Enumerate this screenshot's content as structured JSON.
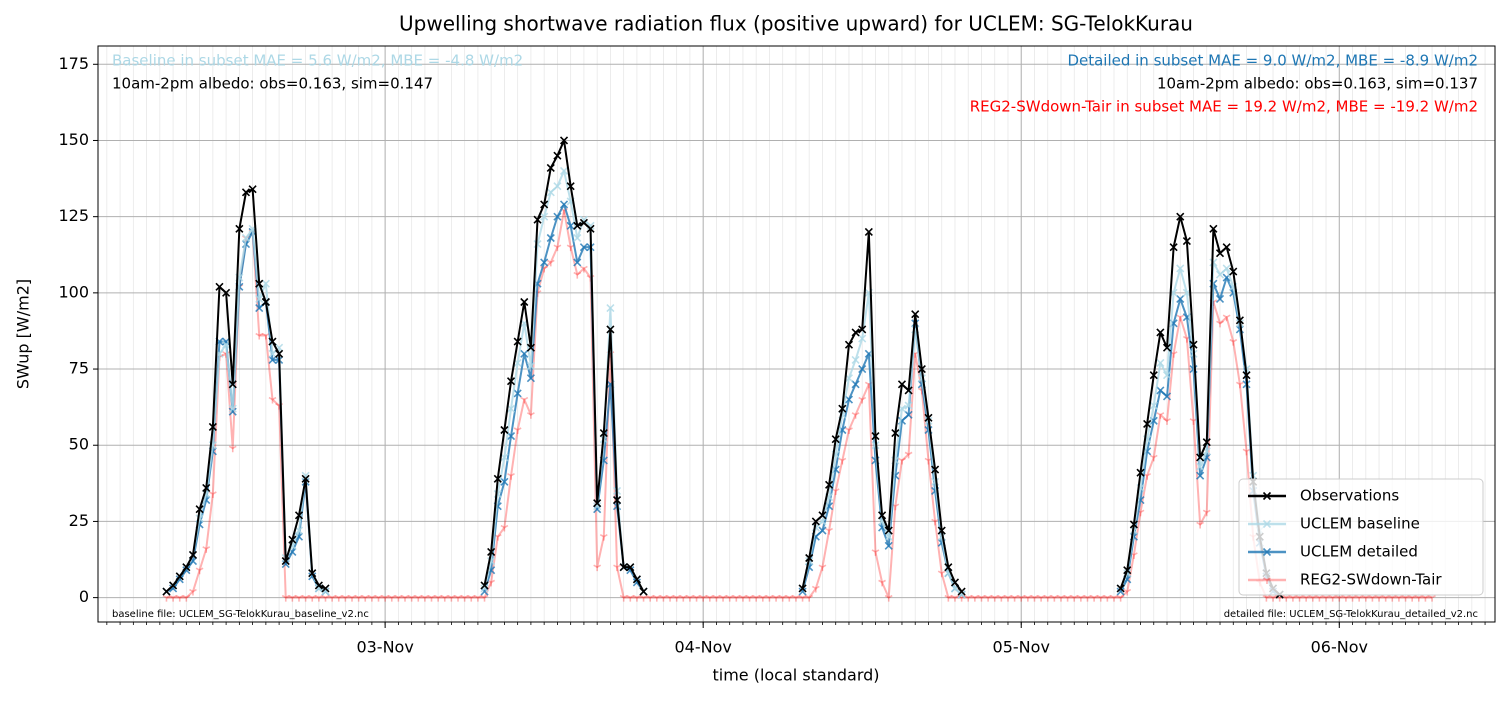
{
  "chart_data": {
    "type": "line",
    "title": "Upwelling shortwave radiation flux (positive upward) for UCLEM: SG-TelokKurau",
    "xlabel": "time (local standard)",
    "ylabel": "SWup [W/m2]",
    "xlim": [
      "02-Nov 02:20",
      "06-Nov 11:45"
    ],
    "xticks": [
      "03-Nov",
      "04-Nov",
      "05-Nov",
      "06-Nov"
    ],
    "ylim": [
      -8,
      181
    ],
    "yticks": [
      0,
      25,
      50,
      75,
      100,
      125,
      150,
      175
    ],
    "grid": true,
    "minor_grid": true,
    "legend": "lower-right",
    "annotations": [
      {
        "text": "Baseline in subset MAE = 5.6 W/m2, MBE = -4.8 W/m2",
        "color": "#add8e6",
        "corner": "top-left"
      },
      {
        "text": "10am-2pm albedo: obs=0.163, sim=0.147",
        "color": "#000000",
        "corner": "top-left"
      },
      {
        "text": "Detailed in subset MAE = 9.0 W/m2, MBE = -8.9 W/m2",
        "color": "#1f77b4",
        "corner": "top-right"
      },
      {
        "text": "10am-2pm albedo: obs=0.163, sim=0.137",
        "color": "#000000",
        "corner": "top-right"
      },
      {
        "text": "REG2-SWdown-Tair in subset MAE = 19.2 W/m2, MBE = -19.2 W/m2",
        "color": "#ff0000",
        "corner": "top-right"
      },
      {
        "text": "baseline file: UCLEM_SG-TelokKurau_baseline_v2.nc",
        "color": "#000000",
        "corner": "bottom-left"
      },
      {
        "text": "detailed file: UCLEM_SG-TelokKurau_detailed_v2.nc",
        "color": "#000000",
        "corner": "bottom-right"
      }
    ],
    "x": [
      "02-Nov 07:30",
      "02-Nov 08:00",
      "02-Nov 08:30",
      "02-Nov 09:00",
      "02-Nov 09:30",
      "02-Nov 10:00",
      "02-Nov 10:30",
      "02-Nov 11:00",
      "02-Nov 11:30",
      "02-Nov 12:00",
      "02-Nov 12:30",
      "02-Nov 13:00",
      "02-Nov 13:30",
      "02-Nov 14:00",
      "02-Nov 14:30",
      "02-Nov 15:00",
      "02-Nov 15:30",
      "02-Nov 16:00",
      "02-Nov 16:30",
      "02-Nov 17:00",
      "02-Nov 17:30",
      "02-Nov 18:00",
      "02-Nov 18:30",
      "02-Nov 19:00",
      "02-Nov 19:30",
      "02-Nov 20:00",
      "02-Nov 20:30",
      "02-Nov 21:00",
      "02-Nov 21:30",
      "02-Nov 22:00",
      "02-Nov 22:30",
      "02-Nov 23:00",
      "02-Nov 23:30",
      "03-Nov 00:00",
      "03-Nov 00:30",
      "03-Nov 01:00",
      "03-Nov 01:30",
      "03-Nov 02:00",
      "03-Nov 02:30",
      "03-Nov 03:00",
      "03-Nov 03:30",
      "03-Nov 04:00",
      "03-Nov 04:30",
      "03-Nov 05:00",
      "03-Nov 05:30",
      "03-Nov 06:00",
      "03-Nov 06:30",
      "03-Nov 07:00",
      "03-Nov 07:30",
      "03-Nov 08:00",
      "03-Nov 08:30",
      "03-Nov 09:00",
      "03-Nov 09:30",
      "03-Nov 10:00",
      "03-Nov 10:30",
      "03-Nov 11:00",
      "03-Nov 11:30",
      "03-Nov 12:00",
      "03-Nov 12:30",
      "03-Nov 13:00",
      "03-Nov 13:30",
      "03-Nov 14:00",
      "03-Nov 14:30",
      "03-Nov 15:00",
      "03-Nov 15:30",
      "03-Nov 16:00",
      "03-Nov 16:30",
      "03-Nov 17:00",
      "03-Nov 17:30",
      "03-Nov 18:00",
      "03-Nov 18:30",
      "03-Nov 19:00",
      "03-Nov 19:30",
      "03-Nov 20:00",
      "03-Nov 20:30",
      "03-Nov 21:00",
      "03-Nov 21:30",
      "03-Nov 22:00",
      "03-Nov 22:30",
      "03-Nov 23:00",
      "03-Nov 23:30",
      "04-Nov 00:00",
      "04-Nov 00:30",
      "04-Nov 01:00",
      "04-Nov 01:30",
      "04-Nov 02:00",
      "04-Nov 02:30",
      "04-Nov 03:00",
      "04-Nov 03:30",
      "04-Nov 04:00",
      "04-Nov 04:30",
      "04-Nov 05:00",
      "04-Nov 05:30",
      "04-Nov 06:00",
      "04-Nov 06:30",
      "04-Nov 07:00",
      "04-Nov 07:30",
      "04-Nov 08:00",
      "04-Nov 08:30",
      "04-Nov 09:00",
      "04-Nov 09:30",
      "04-Nov 10:00",
      "04-Nov 10:30",
      "04-Nov 11:00",
      "04-Nov 11:30",
      "04-Nov 12:00",
      "04-Nov 12:30",
      "04-Nov 13:00",
      "04-Nov 13:30",
      "04-Nov 14:00",
      "04-Nov 14:30",
      "04-Nov 15:00",
      "04-Nov 15:30",
      "04-Nov 16:00",
      "04-Nov 16:30",
      "04-Nov 17:00",
      "04-Nov 17:30",
      "04-Nov 18:00",
      "04-Nov 18:30",
      "04-Nov 19:00",
      "04-Nov 19:30",
      "04-Nov 20:00",
      "04-Nov 20:30",
      "04-Nov 21:00",
      "04-Nov 21:30",
      "04-Nov 22:00",
      "04-Nov 22:30",
      "04-Nov 23:00",
      "04-Nov 23:30",
      "05-Nov 00:00",
      "05-Nov 00:30",
      "05-Nov 01:00",
      "05-Nov 01:30",
      "05-Nov 02:00",
      "05-Nov 02:30",
      "05-Nov 03:00",
      "05-Nov 03:30",
      "05-Nov 04:00",
      "05-Nov 04:30",
      "05-Nov 05:00",
      "05-Nov 05:30",
      "05-Nov 06:00",
      "05-Nov 06:30",
      "05-Nov 07:00",
      "05-Nov 07:30",
      "05-Nov 08:00",
      "05-Nov 08:30",
      "05-Nov 09:00",
      "05-Nov 09:30",
      "05-Nov 10:00",
      "05-Nov 10:30",
      "05-Nov 11:00",
      "05-Nov 11:30",
      "05-Nov 12:00",
      "05-Nov 12:30",
      "05-Nov 13:00",
      "05-Nov 13:30",
      "05-Nov 14:00",
      "05-Nov 14:30",
      "05-Nov 15:00",
      "05-Nov 15:30",
      "05-Nov 16:00",
      "05-Nov 16:30",
      "05-Nov 17:00",
      "05-Nov 17:30",
      "05-Nov 18:00",
      "05-Nov 18:30",
      "05-Nov 19:00",
      "05-Nov 19:30",
      "05-Nov 20:00",
      "05-Nov 20:30",
      "05-Nov 21:00",
      "05-Nov 21:30",
      "05-Nov 22:00",
      "05-Nov 22:30",
      "05-Nov 23:00",
      "05-Nov 23:30",
      "06-Nov 00:00",
      "06-Nov 00:30",
      "06-Nov 01:00",
      "06-Nov 01:30",
      "06-Nov 02:00",
      "06-Nov 02:30",
      "06-Nov 03:00",
      "06-Nov 03:30",
      "06-Nov 04:00",
      "06-Nov 04:30",
      "06-Nov 05:00",
      "06-Nov 05:30",
      "06-Nov 06:00",
      "06-Nov 06:30",
      "06-Nov 07:00"
    ],
    "series": [
      {
        "name": "Observations",
        "color": "#000000",
        "alpha": 1,
        "marker": "x",
        "values": [
          2,
          4,
          7,
          10,
          14,
          29,
          36,
          56,
          102,
          100,
          70,
          121,
          133,
          134,
          103,
          97,
          84,
          80,
          12,
          19,
          27,
          39,
          8,
          4,
          3,
          null,
          null,
          null,
          null,
          null,
          null,
          null,
          null,
          null,
          null,
          null,
          null,
          null,
          null,
          null,
          null,
          null,
          null,
          null,
          null,
          null,
          null,
          null,
          4,
          15,
          39,
          55,
          71,
          84,
          97,
          82,
          124,
          129,
          141,
          145,
          150,
          135,
          122,
          123,
          121,
          31,
          54,
          88,
          32,
          10,
          10,
          6,
          2,
          null,
          null,
          null,
          null,
          null,
          null,
          null,
          null,
          null,
          null,
          null,
          null,
          null,
          null,
          null,
          null,
          null,
          null,
          null,
          null,
          null,
          null,
          null,
          3,
          13,
          25,
          27,
          37,
          52,
          62,
          83,
          87,
          88,
          120,
          53,
          27,
          22,
          54,
          70,
          68,
          93,
          75,
          59,
          42,
          22,
          10,
          5,
          2,
          null,
          null,
          null,
          null,
          null,
          null,
          null,
          null,
          null,
          null,
          null,
          null,
          null,
          null,
          null,
          null,
          null,
          null,
          null,
          null,
          null,
          null,
          null,
          3,
          9,
          24,
          41,
          57,
          73,
          87,
          82,
          115,
          125,
          117,
          83,
          46,
          51,
          121,
          113,
          115,
          107,
          91,
          73,
          38,
          20,
          8,
          3,
          1,
          null,
          null,
          null,
          null,
          null,
          null,
          null,
          null,
          null,
          null,
          null,
          null,
          null,
          null,
          null,
          null,
          null,
          null,
          null,
          null,
          null,
          null,
          null
        ]
      },
      {
        "name": "UCLEM baseline",
        "color": "#add8e6",
        "alpha": 0.8,
        "marker": "x",
        "values": [
          2,
          4,
          7,
          10,
          14,
          26,
          34,
          50,
          80,
          83,
          62,
          105,
          118,
          121,
          98,
          103,
          80,
          82,
          13,
          17,
          22,
          40,
          8,
          3,
          2,
          null,
          null,
          null,
          null,
          null,
          null,
          null,
          null,
          null,
          null,
          null,
          null,
          null,
          null,
          null,
          null,
          null,
          null,
          null,
          null,
          null,
          null,
          null,
          3,
          12,
          34,
          46,
          62,
          77,
          90,
          76,
          116,
          125,
          133,
          135,
          140,
          130,
          118,
          124,
          122,
          30,
          52,
          95,
          35,
          10,
          10,
          6,
          2,
          null,
          null,
          null,
          null,
          null,
          null,
          null,
          null,
          null,
          null,
          null,
          null,
          null,
          null,
          null,
          null,
          null,
          null,
          null,
          null,
          null,
          null,
          null,
          3,
          12,
          23,
          25,
          33,
          47,
          60,
          72,
          78,
          85,
          100,
          50,
          25,
          20,
          45,
          62,
          63,
          88,
          72,
          58,
          38,
          20,
          8,
          3,
          1,
          null,
          null,
          null,
          null,
          null,
          null,
          null,
          null,
          null,
          null,
          null,
          null,
          null,
          null,
          null,
          null,
          null,
          null,
          null,
          null,
          null,
          null,
          null,
          3,
          8,
          22,
          36,
          52,
          63,
          77,
          73,
          100,
          108,
          100,
          80,
          43,
          48,
          110,
          106,
          108,
          102,
          90,
          75,
          40,
          22,
          8,
          3,
          1,
          null,
          null,
          null,
          null,
          null,
          null,
          null,
          null,
          null,
          null,
          null,
          null,
          null,
          null,
          null,
          null,
          null,
          null,
          null,
          null,
          null,
          null,
          null
        ]
      },
      {
        "name": "UCLEM detailed",
        "color": "#1f77b4",
        "alpha": 0.8,
        "marker": "x",
        "values": [
          2,
          3,
          6,
          9,
          12,
          24,
          32,
          48,
          84,
          84,
          61,
          102,
          116,
          120,
          95,
          97,
          78,
          78,
          11,
          15,
          20,
          38,
          7,
          3,
          2,
          null,
          null,
          null,
          null,
          null,
          null,
          null,
          null,
          null,
          null,
          null,
          null,
          null,
          null,
          null,
          null,
          null,
          null,
          null,
          null,
          null,
          null,
          null,
          2,
          9,
          30,
          38,
          53,
          67,
          80,
          72,
          103,
          110,
          118,
          125,
          129,
          122,
          110,
          115,
          115,
          29,
          45,
          70,
          30,
          10,
          9,
          5,
          2,
          null,
          null,
          null,
          null,
          null,
          null,
          null,
          null,
          null,
          null,
          null,
          null,
          null,
          null,
          null,
          null,
          null,
          null,
          null,
          null,
          null,
          null,
          null,
          2,
          10,
          20,
          22,
          30,
          42,
          55,
          65,
          70,
          75,
          80,
          45,
          23,
          17,
          40,
          58,
          60,
          90,
          70,
          55,
          35,
          18,
          8,
          3,
          1,
          null,
          null,
          null,
          null,
          null,
          null,
          null,
          null,
          null,
          null,
          null,
          null,
          null,
          null,
          null,
          null,
          null,
          null,
          null,
          null,
          null,
          null,
          null,
          2,
          6,
          20,
          32,
          48,
          58,
          68,
          66,
          90,
          98,
          92,
          75,
          40,
          46,
          103,
          98,
          105,
          100,
          88,
          70,
          35,
          18,
          7,
          2,
          1,
          null,
          null,
          null,
          null,
          null,
          null,
          null,
          null,
          null,
          null,
          null,
          null,
          null,
          null,
          null,
          null,
          null,
          null,
          null,
          null,
          null,
          null,
          null
        ]
      },
      {
        "name": "REG2-SWdown-Tair",
        "color": "#ff0000",
        "alpha": 0.3,
        "marker": "tri",
        "values": [
          0,
          0,
          0,
          0,
          2,
          9,
          16,
          34,
          79,
          80,
          49,
          102,
          118,
          120,
          86,
          86,
          65,
          63,
          0,
          0,
          0,
          0,
          0,
          0,
          0,
          0,
          0,
          0,
          0,
          0,
          0,
          0,
          0,
          0,
          0,
          0,
          0,
          0,
          0,
          0,
          0,
          0,
          0,
          0,
          0,
          0,
          0,
          0,
          0,
          5,
          20,
          23,
          40,
          55,
          65,
          60,
          100,
          108,
          110,
          115,
          127,
          115,
          106,
          108,
          105,
          10,
          20,
          80,
          10,
          0,
          0,
          0,
          0,
          0,
          0,
          0,
          0,
          0,
          0,
          0,
          0,
          0,
          0,
          0,
          0,
          0,
          0,
          0,
          0,
          0,
          0,
          0,
          0,
          0,
          0,
          0,
          0,
          0,
          3,
          10,
          22,
          35,
          45,
          55,
          60,
          65,
          70,
          15,
          5,
          0,
          30,
          45,
          47,
          80,
          68,
          45,
          25,
          8,
          0,
          0,
          0,
          0,
          0,
          0,
          0,
          0,
          0,
          0,
          0,
          0,
          0,
          0,
          0,
          0,
          0,
          0,
          0,
          0,
          0,
          0,
          0,
          0,
          0,
          0,
          0,
          2,
          14,
          28,
          40,
          46,
          60,
          58,
          80,
          92,
          85,
          58,
          24,
          28,
          97,
          90,
          92,
          84,
          70,
          48,
          20,
          5,
          0,
          0,
          0,
          0,
          0,
          0,
          0,
          0,
          0,
          0,
          0,
          0,
          0,
          0,
          0,
          0,
          0,
          0,
          0,
          0,
          0,
          0,
          0,
          0,
          0,
          0
        ]
      }
    ]
  }
}
